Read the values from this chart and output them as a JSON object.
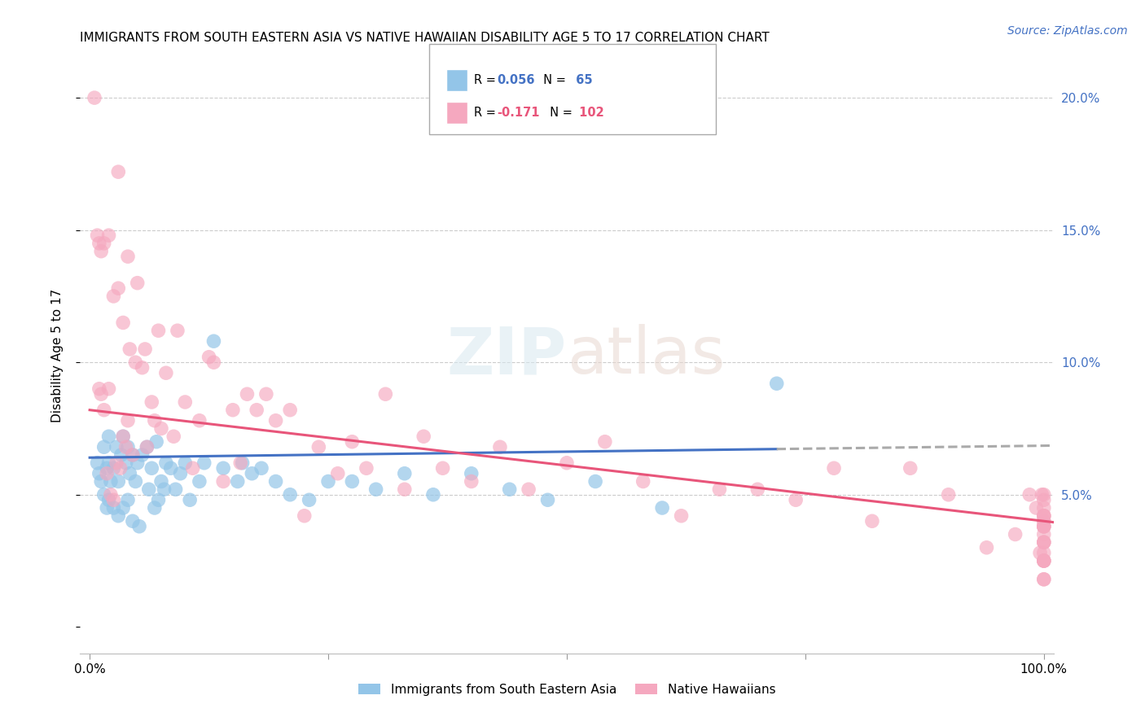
{
  "title": "IMMIGRANTS FROM SOUTH EASTERN ASIA VS NATIVE HAWAIIAN DISABILITY AGE 5 TO 17 CORRELATION CHART",
  "source": "Source: ZipAtlas.com",
  "ylabel": "Disability Age 5 to 17",
  "xlim": [
    -0.01,
    1.01
  ],
  "ylim": [
    -0.01,
    0.215
  ],
  "ytick_positions": [
    0.0,
    0.05,
    0.1,
    0.15,
    0.2
  ],
  "ytick_labels_right": [
    "",
    "5.0%",
    "10.0%",
    "15.0%",
    "20.0%"
  ],
  "xtick_positions": [
    0.0,
    0.25,
    0.5,
    0.75,
    1.0
  ],
  "xtick_labels": [
    "0.0%",
    "",
    "",
    "",
    "100.0%"
  ],
  "legend_label_blue": "Immigrants from South Eastern Asia",
  "legend_label_pink": "Native Hawaiians",
  "title_fontsize": 11,
  "axis_label_fontsize": 11,
  "tick_fontsize": 11,
  "source_fontsize": 10,
  "blue_scatter_color": "#93c5e8",
  "pink_scatter_color": "#f5a8bf",
  "blue_line_color": "#4472c4",
  "pink_line_color": "#e8557a",
  "grid_color": "#cccccc",
  "right_axis_color": "#4472c4",
  "blue_points_x": [
    0.008,
    0.01,
    0.012,
    0.015,
    0.015,
    0.018,
    0.018,
    0.02,
    0.02,
    0.02,
    0.022,
    0.025,
    0.025,
    0.028,
    0.03,
    0.03,
    0.033,
    0.035,
    0.035,
    0.038,
    0.04,
    0.04,
    0.042,
    0.045,
    0.045,
    0.048,
    0.05,
    0.052,
    0.055,
    0.06,
    0.062,
    0.065,
    0.068,
    0.07,
    0.072,
    0.075,
    0.078,
    0.08,
    0.085,
    0.09,
    0.095,
    0.1,
    0.105,
    0.115,
    0.12,
    0.13,
    0.14,
    0.155,
    0.16,
    0.17,
    0.18,
    0.195,
    0.21,
    0.23,
    0.25,
    0.275,
    0.3,
    0.33,
    0.36,
    0.4,
    0.44,
    0.48,
    0.53,
    0.6,
    0.72
  ],
  "blue_points_y": [
    0.062,
    0.058,
    0.055,
    0.068,
    0.05,
    0.06,
    0.045,
    0.072,
    0.062,
    0.048,
    0.055,
    0.06,
    0.045,
    0.068,
    0.055,
    0.042,
    0.065,
    0.072,
    0.045,
    0.062,
    0.068,
    0.048,
    0.058,
    0.065,
    0.04,
    0.055,
    0.062,
    0.038,
    0.065,
    0.068,
    0.052,
    0.06,
    0.045,
    0.07,
    0.048,
    0.055,
    0.052,
    0.062,
    0.06,
    0.052,
    0.058,
    0.062,
    0.048,
    0.055,
    0.062,
    0.108,
    0.06,
    0.055,
    0.062,
    0.058,
    0.06,
    0.055,
    0.05,
    0.048,
    0.055,
    0.055,
    0.052,
    0.058,
    0.05,
    0.058,
    0.052,
    0.048,
    0.055,
    0.045,
    0.092
  ],
  "pink_points_x": [
    0.005,
    0.008,
    0.01,
    0.01,
    0.012,
    0.012,
    0.015,
    0.015,
    0.018,
    0.02,
    0.02,
    0.022,
    0.025,
    0.025,
    0.028,
    0.03,
    0.03,
    0.032,
    0.035,
    0.035,
    0.038,
    0.04,
    0.04,
    0.042,
    0.045,
    0.048,
    0.05,
    0.055,
    0.058,
    0.06,
    0.065,
    0.068,
    0.072,
    0.075,
    0.08,
    0.088,
    0.092,
    0.1,
    0.108,
    0.115,
    0.125,
    0.13,
    0.14,
    0.15,
    0.158,
    0.165,
    0.175,
    0.185,
    0.195,
    0.21,
    0.225,
    0.24,
    0.26,
    0.275,
    0.29,
    0.31,
    0.33,
    0.35,
    0.37,
    0.4,
    0.43,
    0.46,
    0.5,
    0.54,
    0.58,
    0.62,
    0.66,
    0.7,
    0.74,
    0.78,
    0.82,
    0.86,
    0.9,
    0.94,
    0.97,
    0.985,
    0.992,
    0.996,
    0.998,
    1.0,
    1.0,
    1.0,
    1.0,
    1.0,
    1.0,
    1.0,
    1.0,
    1.0,
    1.0,
    1.0,
    1.0,
    1.0,
    1.0,
    1.0,
    1.0,
    1.0,
    1.0,
    1.0,
    1.0,
    1.0,
    1.0,
    1.0
  ],
  "pink_points_y": [
    0.2,
    0.148,
    0.145,
    0.09,
    0.142,
    0.088,
    0.145,
    0.082,
    0.058,
    0.148,
    0.09,
    0.05,
    0.125,
    0.048,
    0.062,
    0.172,
    0.128,
    0.06,
    0.115,
    0.072,
    0.068,
    0.14,
    0.078,
    0.105,
    0.065,
    0.1,
    0.13,
    0.098,
    0.105,
    0.068,
    0.085,
    0.078,
    0.112,
    0.075,
    0.096,
    0.072,
    0.112,
    0.085,
    0.06,
    0.078,
    0.102,
    0.1,
    0.055,
    0.082,
    0.062,
    0.088,
    0.082,
    0.088,
    0.078,
    0.082,
    0.042,
    0.068,
    0.058,
    0.07,
    0.06,
    0.088,
    0.052,
    0.072,
    0.06,
    0.055,
    0.068,
    0.052,
    0.062,
    0.07,
    0.055,
    0.042,
    0.052,
    0.052,
    0.048,
    0.06,
    0.04,
    0.06,
    0.05,
    0.03,
    0.035,
    0.05,
    0.045,
    0.028,
    0.05,
    0.042,
    0.038,
    0.025,
    0.032,
    0.048,
    0.025,
    0.042,
    0.038,
    0.035,
    0.05,
    0.04,
    0.038,
    0.045,
    0.032,
    0.042,
    0.04,
    0.028,
    0.025,
    0.018,
    0.032,
    0.025,
    0.018,
    0.038
  ]
}
